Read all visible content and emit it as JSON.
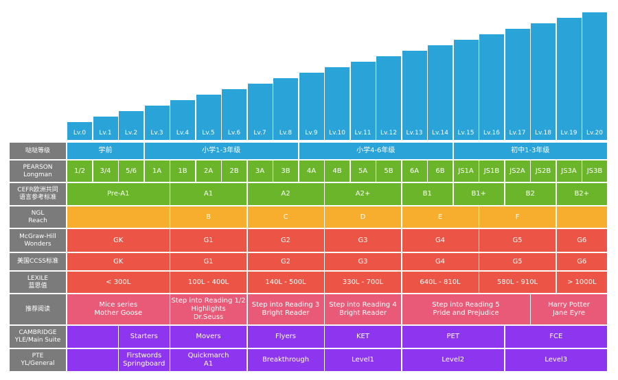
{
  "chart_data": {
    "type": "table",
    "title": "",
    "colors": {
      "bar": "#29a3d8",
      "header": "#7b7b7b",
      "blue": "#29a3d8",
      "green": "#6ab52a",
      "orange": "#f7ad2e",
      "red": "#ec5545",
      "pink": "#e95a78",
      "purple": "#8d35ef"
    },
    "levels": [
      "Lv.0",
      "Lv.1",
      "Lv.2",
      "Lv.3",
      "Lv.4",
      "Lv.5",
      "Lv.6",
      "Lv.7",
      "Lv.8",
      "Lv.9",
      "Lv.10",
      "Lv.11",
      "Lv.12",
      "Lv.13",
      "Lv.14",
      "Lv.15",
      "Lv.16",
      "Lv.17",
      "Lv.18",
      "Lv.19",
      "Lv.20"
    ],
    "bar_values": [
      0,
      1,
      2,
      3,
      4,
      5,
      6,
      7,
      8,
      9,
      10,
      11,
      12,
      13,
      14,
      15,
      16,
      17,
      18,
      19,
      20
    ],
    "rows": [
      {
        "header": "哒哒等级",
        "color": "blue",
        "cells": [
          {
            "text": "学前",
            "span": 3
          },
          {
            "text": "小学1-3年级",
            "span": 6
          },
          {
            "text": "小学4-6年级",
            "span": 6
          },
          {
            "text": "初中1-3年级",
            "span": 6
          }
        ]
      },
      {
        "header": "PEARSON\nLongman",
        "color": "green",
        "cells": [
          {
            "text": "1/2",
            "span": 1
          },
          {
            "text": "3/4",
            "span": 1
          },
          {
            "text": "5/6",
            "span": 1
          },
          {
            "text": "1A",
            "span": 1
          },
          {
            "text": "1B",
            "span": 1
          },
          {
            "text": "2A",
            "span": 1
          },
          {
            "text": "2B",
            "span": 1
          },
          {
            "text": "3A",
            "span": 1
          },
          {
            "text": "3B",
            "span": 1
          },
          {
            "text": "4A",
            "span": 1
          },
          {
            "text": "4B",
            "span": 1
          },
          {
            "text": "5A",
            "span": 1
          },
          {
            "text": "5B",
            "span": 1
          },
          {
            "text": "6A",
            "span": 1
          },
          {
            "text": "6B",
            "span": 1
          },
          {
            "text": "JS1A",
            "span": 1
          },
          {
            "text": "JS1B",
            "span": 1
          },
          {
            "text": "JS2A",
            "span": 1
          },
          {
            "text": "JS2B",
            "span": 1
          },
          {
            "text": "JS3A",
            "span": 1
          },
          {
            "text": "JS3B",
            "span": 1
          }
        ]
      },
      {
        "header": "CEFR欧洲共同\n语言参考标准",
        "color": "green",
        "cells": [
          {
            "text": "Pre-A1",
            "span": 4
          },
          {
            "text": "A1",
            "span": 3
          },
          {
            "text": "A2",
            "span": 3
          },
          {
            "text": "A2+",
            "span": 3
          },
          {
            "text": "B1",
            "span": 2
          },
          {
            "text": "B1+",
            "span": 2
          },
          {
            "text": "B2",
            "span": 2
          },
          {
            "text": "B2+",
            "span": 2
          }
        ]
      },
      {
        "header": "NGL\nReach",
        "color": "orange",
        "cells": [
          {
            "text": "",
            "span": 4
          },
          {
            "text": "B",
            "span": 3
          },
          {
            "text": "C",
            "span": 3
          },
          {
            "text": "D",
            "span": 3
          },
          {
            "text": "E",
            "span": 3
          },
          {
            "text": "F",
            "span": 3
          },
          {
            "text": "",
            "span": 2
          }
        ]
      },
      {
        "header": "McGraw-Hill\nWonders",
        "color": "red",
        "cells": [
          {
            "text": "GK",
            "span": 4
          },
          {
            "text": "G1",
            "span": 3
          },
          {
            "text": "G2",
            "span": 3
          },
          {
            "text": "G3",
            "span": 3
          },
          {
            "text": "G4",
            "span": 3
          },
          {
            "text": "G5",
            "span": 3
          },
          {
            "text": "G6",
            "span": 2
          }
        ]
      },
      {
        "header": "美国CCSS标准",
        "color": "red",
        "cells": [
          {
            "text": "GK",
            "span": 4
          },
          {
            "text": "G1",
            "span": 3
          },
          {
            "text": "G2",
            "span": 3
          },
          {
            "text": "G3",
            "span": 3
          },
          {
            "text": "G4",
            "span": 3
          },
          {
            "text": "G5",
            "span": 3
          },
          {
            "text": "G6",
            "span": 2
          }
        ]
      },
      {
        "header": "LEXILE\n蓝思值",
        "color": "red",
        "cells": [
          {
            "text": "< 300L",
            "span": 4
          },
          {
            "text": "100L - 400L",
            "span": 3
          },
          {
            "text": "140L - 500L",
            "span": 3
          },
          {
            "text": "330L - 700L",
            "span": 3
          },
          {
            "text": "640L - 810L",
            "span": 3
          },
          {
            "text": "580L - 910L",
            "span": 3
          },
          {
            "text": "> 1000L",
            "span": 2
          }
        ]
      },
      {
        "header": "推荐阅读",
        "color": "pink",
        "cells": [
          {
            "text": "Mice series\nMother Goose",
            "span": 4
          },
          {
            "text": "Step into Reading 1/2\nHighlights\nDr.Seuss",
            "span": 3
          },
          {
            "text": "Step into Reading 3\nBright Reader",
            "span": 3
          },
          {
            "text": "Step into Reading 4\nBright Reader",
            "span": 3
          },
          {
            "text": "Step into Reading 5\nPride and Prejudice",
            "span": 5
          },
          {
            "text": "Harry Potter\nJane Eyre",
            "span": 3
          }
        ]
      },
      {
        "header": "CAMBRIDGE\nYLE/Main Suite",
        "color": "purple",
        "cells": [
          {
            "text": "",
            "span": 2
          },
          {
            "text": "Starters",
            "span": 2
          },
          {
            "text": "Movers",
            "span": 3
          },
          {
            "text": "Flyers",
            "span": 3
          },
          {
            "text": "KET",
            "span": 3
          },
          {
            "text": "PET",
            "span": 4
          },
          {
            "text": "FCE",
            "span": 4
          }
        ]
      },
      {
        "header": "PTE\nYL/General",
        "color": "purple",
        "cells": [
          {
            "text": "",
            "span": 2
          },
          {
            "text": "Firstwords\nSpringboard",
            "span": 2
          },
          {
            "text": "Quickmarch\nA1",
            "span": 3
          },
          {
            "text": "Breakthrough",
            "span": 3
          },
          {
            "text": "Level1",
            "span": 3
          },
          {
            "text": "Level2",
            "span": 4
          },
          {
            "text": "Level3",
            "span": 4
          }
        ]
      }
    ]
  }
}
